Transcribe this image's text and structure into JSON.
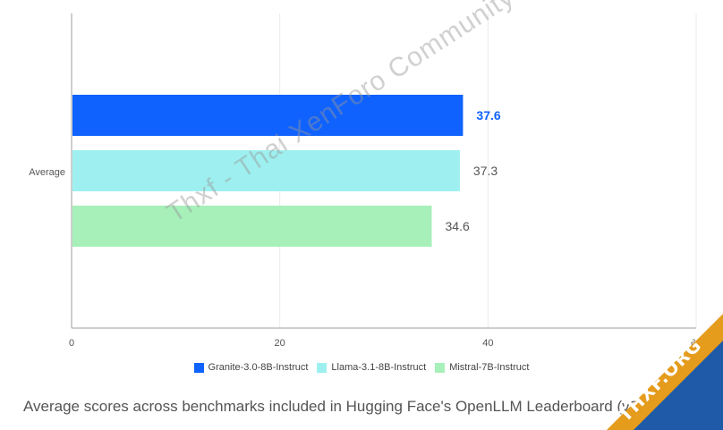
{
  "chart_data": {
    "type": "bar",
    "orientation": "horizontal",
    "categories": [
      "Average"
    ],
    "series": [
      {
        "name": "Granite-3.0-8B-Instruct",
        "values": [
          37.6
        ],
        "color": "#0f62fe",
        "label_color": "#0f62fe"
      },
      {
        "name": "Llama-3.1-8B-Instruct",
        "values": [
          37.3
        ],
        "color": "#9ef0f0",
        "label_color": "#555555"
      },
      {
        "name": "Mistral-7B-Instruct",
        "values": [
          34.6
        ],
        "color": "#a7f0ba",
        "label_color": "#555555"
      }
    ],
    "value_labels": [
      "37.6",
      "37.3",
      "34.6"
    ],
    "xlim": [
      0,
      60
    ],
    "xticks": [
      "0",
      "20",
      "40",
      "60"
    ],
    "grid": true,
    "legend_position": "bottom"
  },
  "caption": "Average scores across benchmarks included in Hugging Face's OpenLLM Leaderboard (v2)",
  "watermark": "Thxf - Thai XenForo Community",
  "badge": "THXF.ORG"
}
